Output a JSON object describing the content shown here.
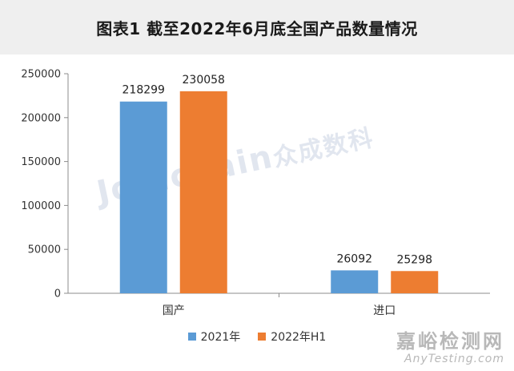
{
  "title": "图表1  截至2022年6月底全国产品数量情况",
  "watermark": {
    "latin": "Joinchain",
    "chinese": "众成数科"
  },
  "corner_brand": {
    "main": "嘉峪检测网",
    "sub": "AnyTesting.com"
  },
  "chart_data": {
    "type": "bar",
    "categories": [
      "国产",
      "进口"
    ],
    "series": [
      {
        "name": "2021年",
        "values": [
          218299,
          26092
        ],
        "color": "#5b9bd5"
      },
      {
        "name": "2022年H1",
        "values": [
          230058,
          25298
        ],
        "color": "#ed7d31"
      }
    ],
    "ylim": [
      0,
      250000
    ],
    "yticks": [
      0,
      50000,
      100000,
      150000,
      200000,
      250000
    ],
    "xlabel": "",
    "ylabel": "",
    "legend": "bottom",
    "grid": false,
    "data_labels": true
  }
}
